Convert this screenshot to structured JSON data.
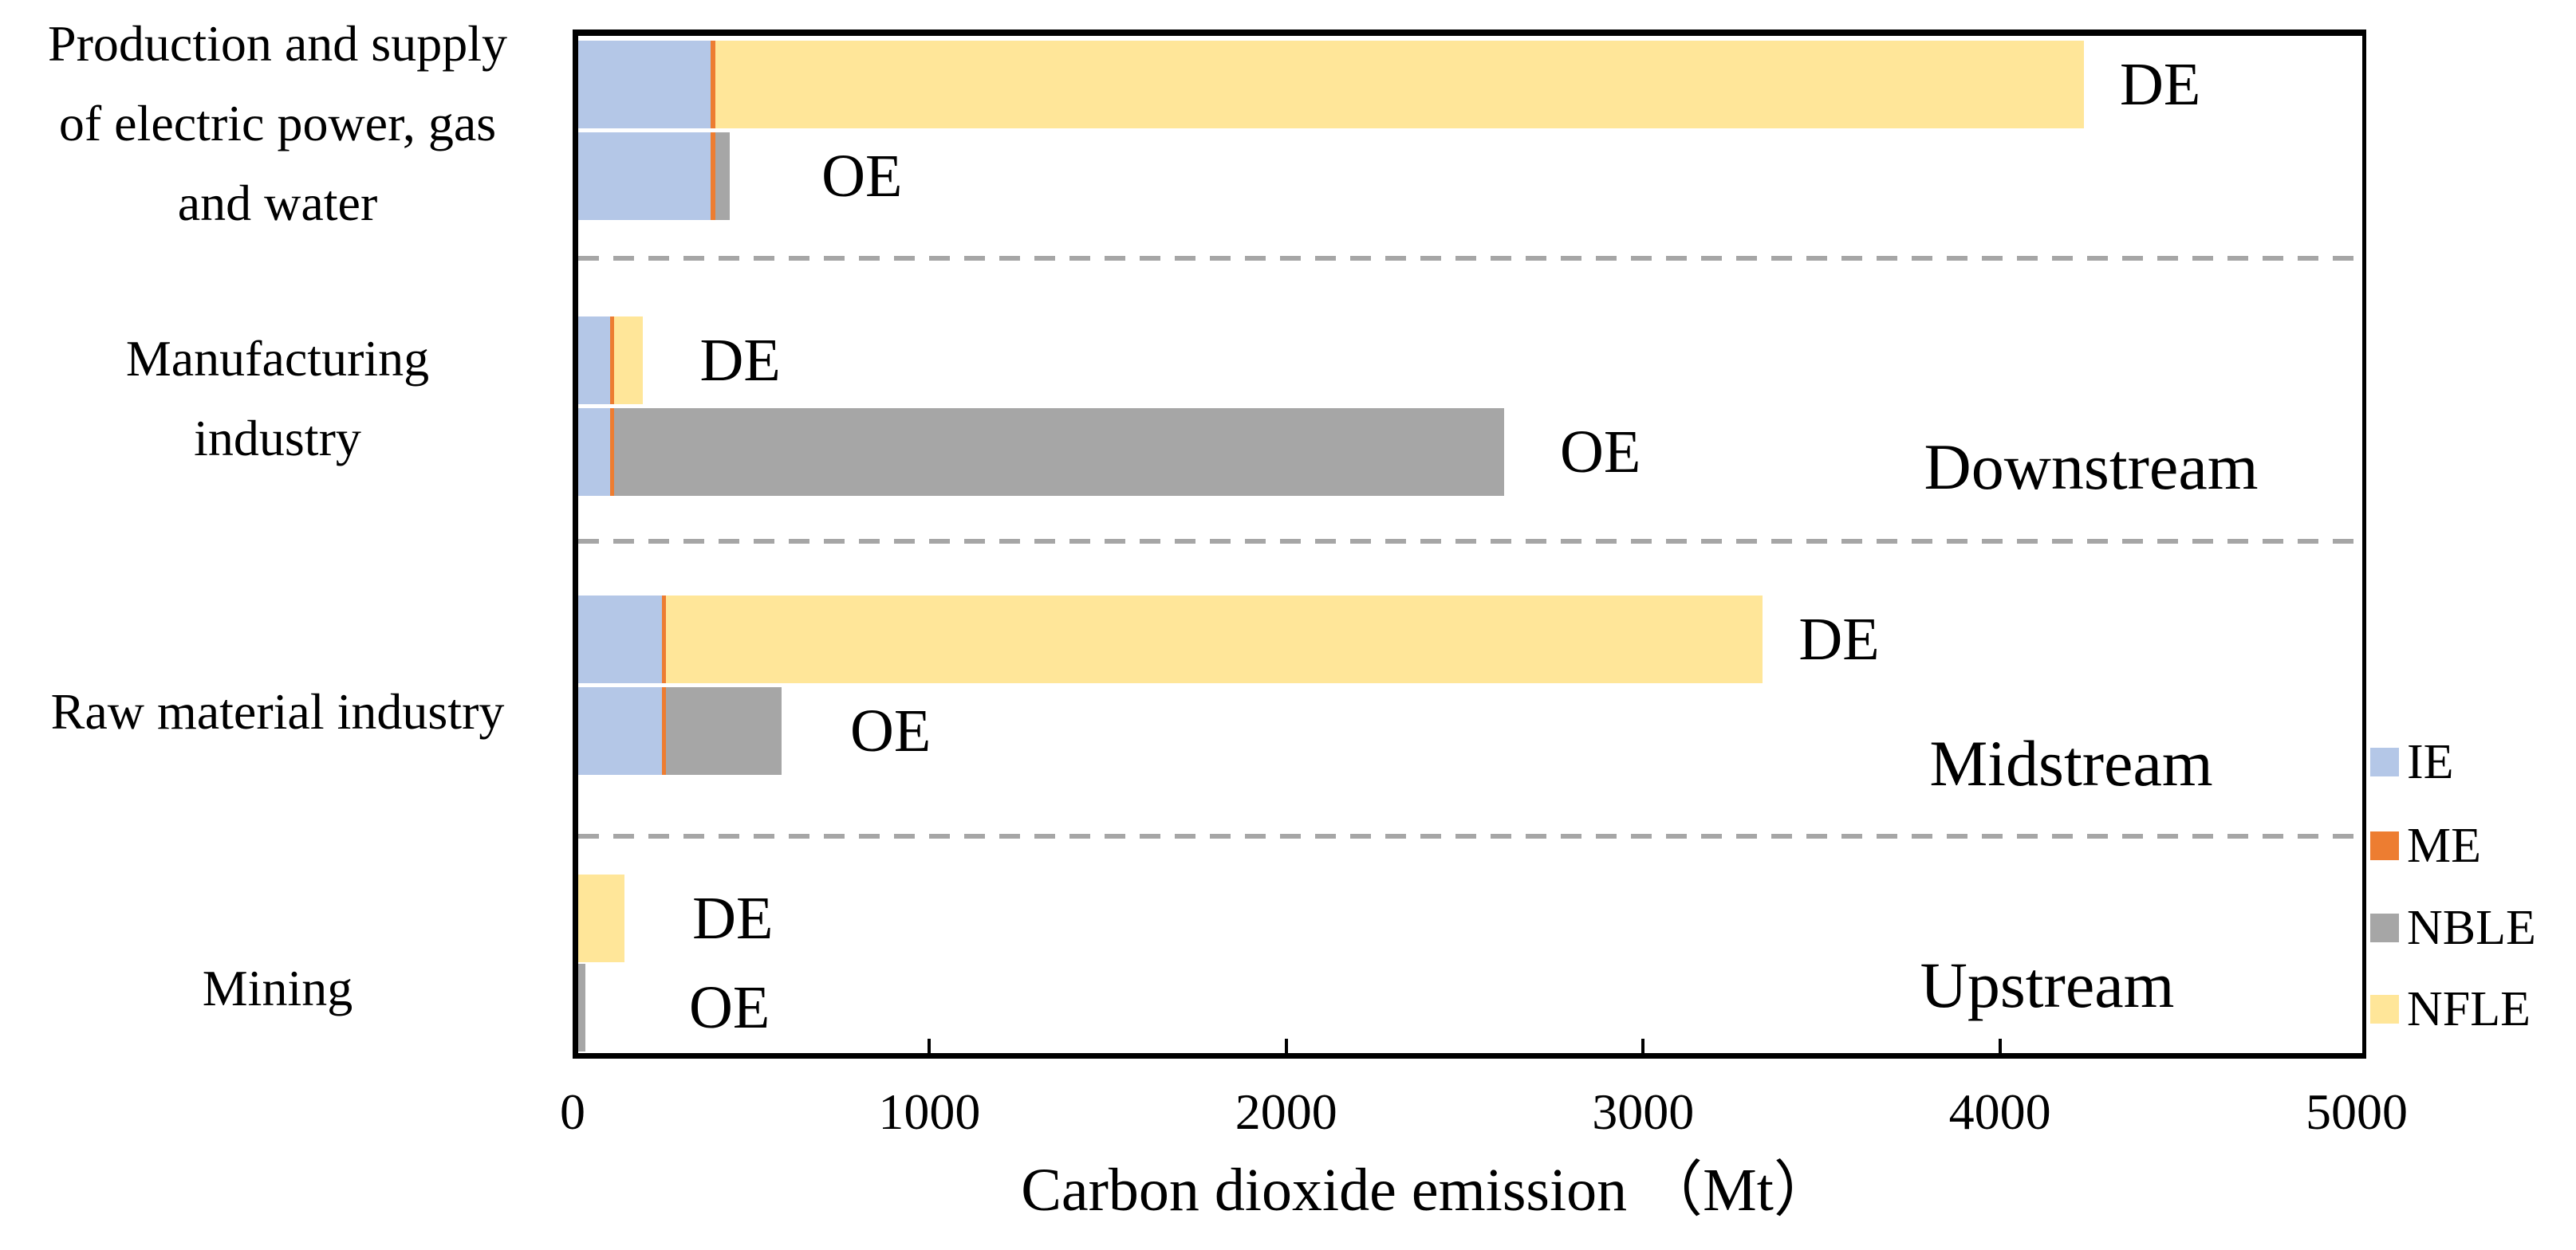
{
  "chart_data": {
    "type": "bar",
    "orientation": "horizontal-stacked",
    "xlabel": "Carbon dioxide emission （Mt）",
    "ylabel": "",
    "xlim": [
      0,
      5000
    ],
    "x_ticks": [
      0,
      1000,
      2000,
      3000,
      4000,
      5000
    ],
    "grid": false,
    "legend_position": "right",
    "series_keys": [
      "IE",
      "ME",
      "NBLE",
      "NFLE"
    ],
    "legend": [
      {
        "name": "IE",
        "color": "#B4C7E7"
      },
      {
        "name": "ME",
        "color": "#ED7D31"
      },
      {
        "name": "NBLE",
        "color": "#A6A6A6"
      },
      {
        "name": "NFLE",
        "color": "#FFE699"
      }
    ],
    "groups": [
      {
        "category": "Production and supply of electric power, gas and water",
        "category_lines": [
          "Production and supply",
          "of electric power, gas",
          "and water"
        ],
        "bars": [
          {
            "label": "DE",
            "values": {
              "IE": 370,
              "ME": 15,
              "NBLE": 0,
              "NFLE": 3835
            },
            "total": 4220
          },
          {
            "label": "OE",
            "values": {
              "IE": 370,
              "ME": 15,
              "NBLE": 40,
              "NFLE": 0
            },
            "total": 425
          }
        ]
      },
      {
        "category": "Manufacturing industry",
        "category_lines": [
          "Manufacturing",
          "industry"
        ],
        "bars": [
          {
            "label": "DE",
            "values": {
              "IE": 90,
              "ME": 10,
              "NBLE": 0,
              "NFLE": 80
            },
            "total": 180
          },
          {
            "label": "OE",
            "values": {
              "IE": 90,
              "ME": 10,
              "NBLE": 2495,
              "NFLE": 0
            },
            "total": 2595
          }
        ]
      },
      {
        "category": "Raw material industry",
        "category_lines": [
          "Raw material industry"
        ],
        "bars": [
          {
            "label": "DE",
            "values": {
              "IE": 235,
              "ME": 10,
              "NBLE": 0,
              "NFLE": 3075
            },
            "total": 3320
          },
          {
            "label": "OE",
            "values": {
              "IE": 235,
              "ME": 10,
              "NBLE": 325,
              "NFLE": 0
            },
            "total": 570
          }
        ]
      },
      {
        "category": "Mining",
        "category_lines": [
          "Mining"
        ],
        "bars": [
          {
            "label": "DE",
            "values": {
              "IE": 0,
              "ME": 0,
              "NBLE": 0,
              "NFLE": 130
            },
            "total": 130
          },
          {
            "label": "OE",
            "values": {
              "IE": 0,
              "ME": 0,
              "NBLE": 20,
              "NFLE": 0
            },
            "total": 20
          }
        ]
      }
    ],
    "stream_labels": [
      "Downstream",
      "Midstream",
      "Upstream"
    ],
    "separator_color": "#A6A6A6",
    "axis_color": "#000000"
  }
}
